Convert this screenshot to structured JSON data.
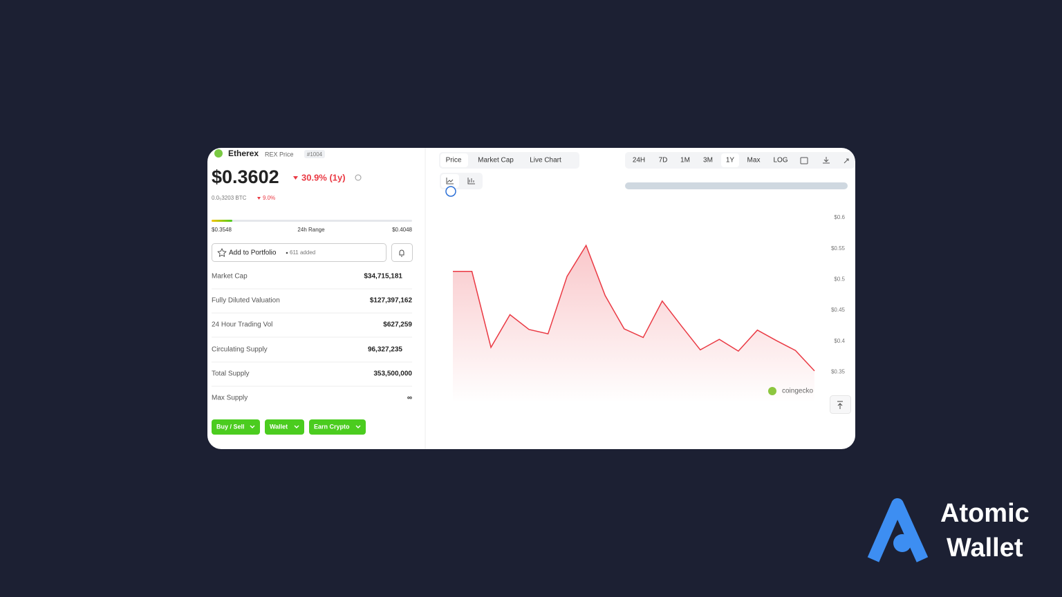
{
  "coin": {
    "name": "Etherex",
    "symbol_label": "REX Price",
    "rank": "#1004",
    "price": "$0.3602",
    "change": "30.9% (1y)",
    "btc_price": "0.0₅3203 BTC",
    "btc_change": "9.0%"
  },
  "range": {
    "low": "$0.3548",
    "label": "24h Range",
    "high": "$0.4048"
  },
  "portfolio": {
    "button": "Add to Portfolio",
    "added": "611 added"
  },
  "stats": [
    {
      "label": "Market Cap",
      "value": "$34,715,181"
    },
    {
      "label": "Fully Diluted Valuation",
      "value": "$127,397,162"
    },
    {
      "label": "24 Hour Trading Vol",
      "value": "$627,259"
    },
    {
      "label": "Circulating Supply",
      "value": "96,327,235"
    },
    {
      "label": "Total Supply",
      "value": "353,500,000"
    },
    {
      "label": "Max Supply",
      "value": "∞"
    }
  ],
  "actions": [
    "Buy / Sell",
    "Wallet",
    "Earn Crypto"
  ],
  "tabs": [
    "Price",
    "Market Cap",
    "Live Chart"
  ],
  "ranges": [
    "24H",
    "7D",
    "1M",
    "3M",
    "1Y",
    "Max",
    "LOG"
  ],
  "watermark": "coingecko",
  "brand": {
    "line1": "Atomic",
    "line2": "Wallet"
  },
  "chart_data": {
    "type": "line",
    "color": "#ea3943",
    "grid": false,
    "categories": [
      null,
      null,
      null,
      null,
      null,
      null,
      null,
      null,
      null,
      null,
      null,
      null,
      null,
      null,
      null,
      null,
      null,
      null,
      null,
      null
    ],
    "series": [
      {
        "name": null,
        "color": "#ea3943",
        "values": [
          0.513,
          0.513,
          0.39,
          0.443,
          0.419,
          0.412,
          0.505,
          0.555,
          0.474,
          0.42,
          0.406,
          0.465,
          0.425,
          0.386,
          0.403,
          0.384,
          0.418,
          0.401,
          0.385,
          0.352
        ]
      }
    ],
    "ylim": [
      0.3,
      0.625
    ],
    "yticks": [
      {
        "value": 0.6,
        "label": "$0.6"
      },
      {
        "value": 0.55,
        "label": "$0.55"
      },
      {
        "value": 0.5,
        "label": "$0.5"
      },
      {
        "value": 0.45,
        "label": "$0.45"
      },
      {
        "value": 0.4,
        "label": "$0.4"
      },
      {
        "value": 0.35,
        "label": "$0.35"
      }
    ]
  }
}
